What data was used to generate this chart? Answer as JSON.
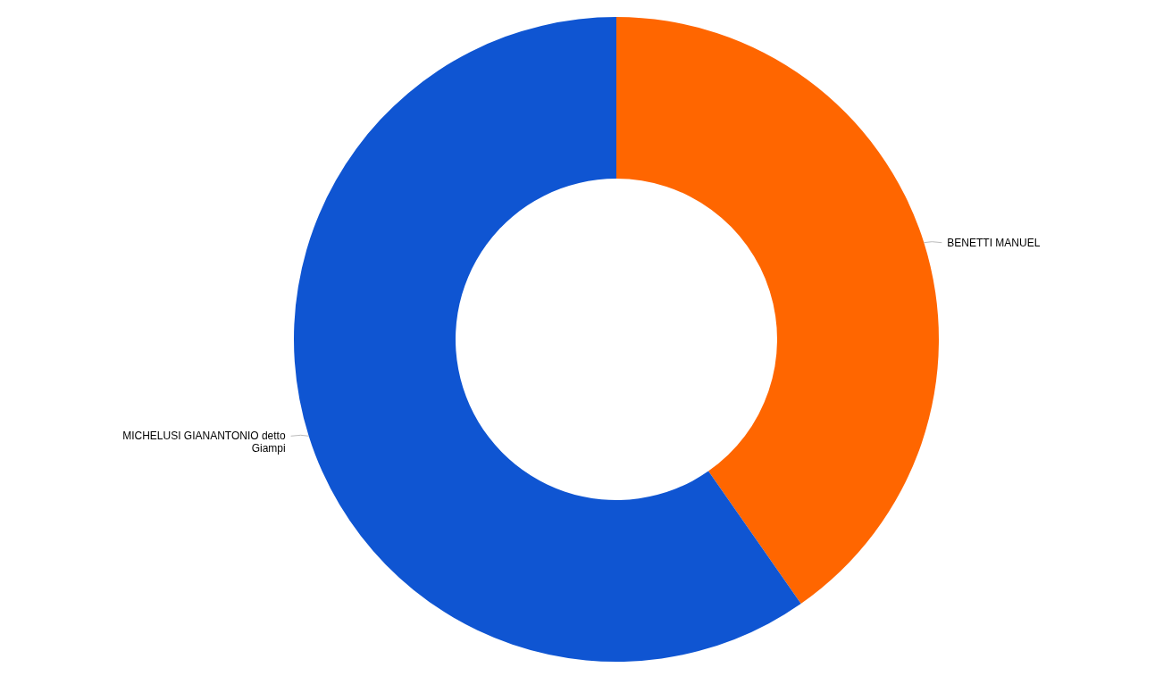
{
  "chart_data": {
    "type": "donut",
    "categories": [
      "BENETTI MANUEL",
      "MICHELUSI GIANANTONIO detto Giampi"
    ],
    "values": [
      40.3,
      59.7
    ],
    "colors": [
      "#ff6600",
      "#0f55d2"
    ]
  }
}
